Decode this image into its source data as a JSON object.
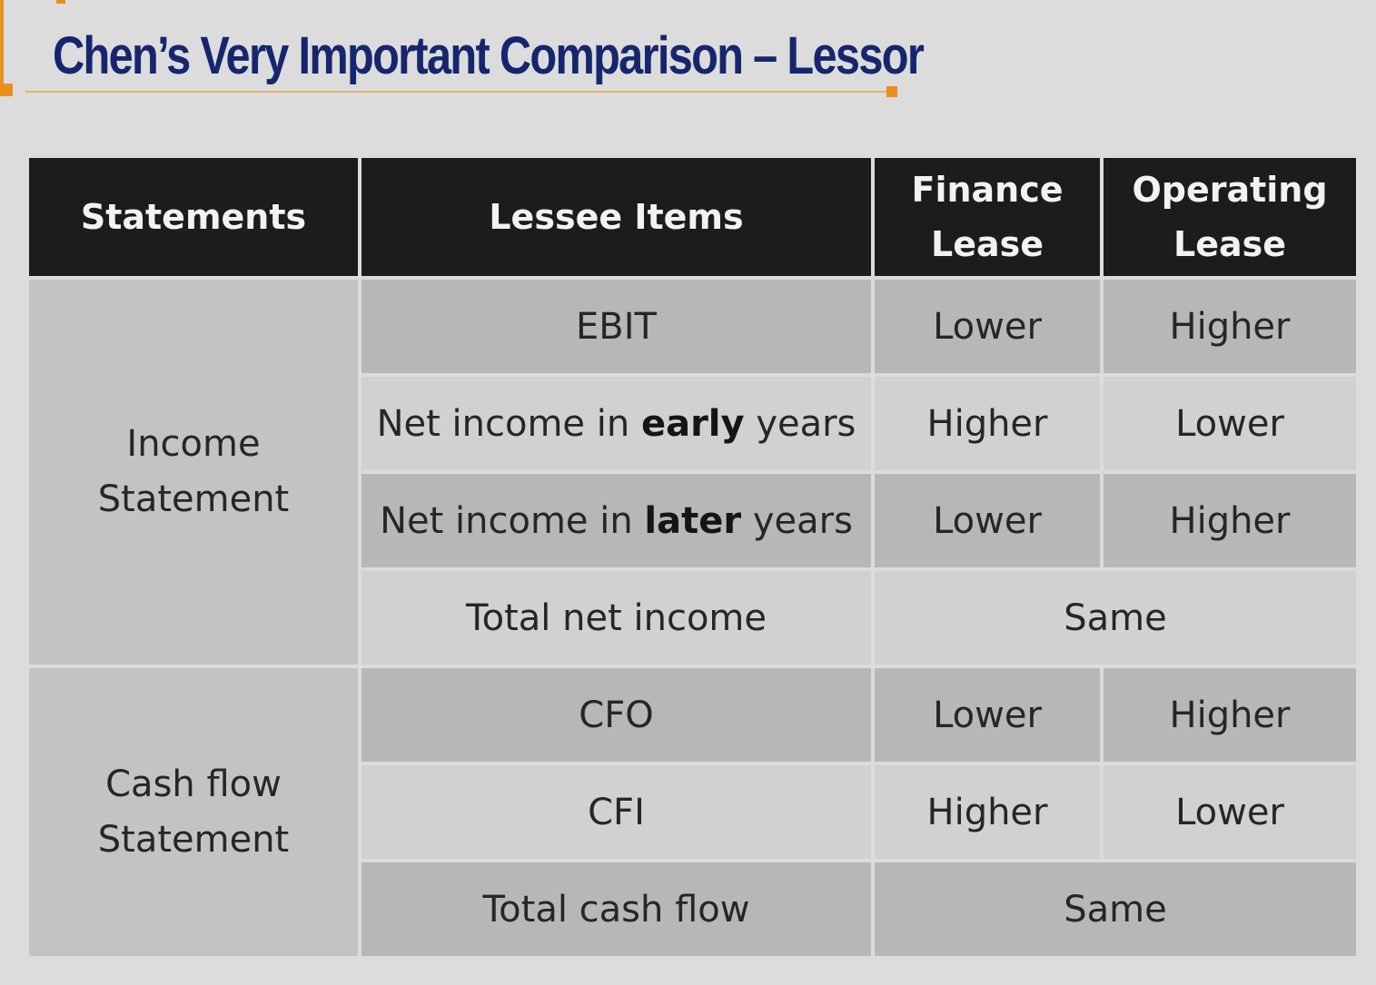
{
  "title": "Chen’s Very Important Comparison – Lessor",
  "table": {
    "headers": {
      "statements": "Statements",
      "items": "Lessee Items",
      "finance_line1": "Finance",
      "finance_line2": "Lease",
      "operating_line1": "Operating",
      "operating_line2": "Lease"
    },
    "groups": {
      "income_line1": "Income",
      "income_line2": "Statement",
      "cash_line1": "Cash flow",
      "cash_line2": "Statement"
    },
    "rows": [
      {
        "item": "EBIT",
        "finance": "Lower",
        "operating": "Higher"
      },
      {
        "item_prefix": "Net income in",
        "item_bold": "early",
        "item_suffix": "years",
        "finance": "Higher",
        "operating": "Lower"
      },
      {
        "item_prefix": "Net income in",
        "item_bold": "later",
        "item_suffix": "years",
        "finance": "Lower",
        "operating": "Higher"
      },
      {
        "item": "Total net income",
        "both": "Same"
      },
      {
        "item": "CFO",
        "finance": "Lower",
        "operating": "Higher"
      },
      {
        "item": "CFI",
        "finance": "Higher",
        "operating": "Lower"
      },
      {
        "item": "Total cash flow",
        "both": "Same"
      }
    ]
  }
}
